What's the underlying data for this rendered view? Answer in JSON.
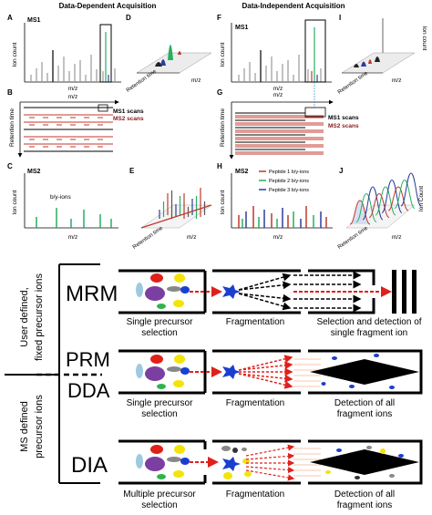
{
  "top": {
    "dda_title": "Data-Dependent Acquisition",
    "dia_title": "Data-Independent Acquisition",
    "letters": {
      "A": "A",
      "B": "B",
      "C": "C",
      "D": "D",
      "E": "E",
      "F": "F",
      "G": "G",
      "H": "H",
      "I": "I",
      "J": "J"
    },
    "ms1": "MS1",
    "ms2": "MS2",
    "ion_count": "Ion count",
    "ion_count_j": "Ion Count",
    "mz": "m/z",
    "retention_time": "Retention time",
    "ms1_scans": "MS1 scans",
    "ms2_scans": "MS2 scans",
    "by_ions": "b/y-ions",
    "legend": [
      "Peptide 1 b/y-ions",
      "Peptide 2 b/y-ions",
      "Peptide 3 b/y-ions"
    ],
    "legend_colors": [
      "#c0392b",
      "#27ae60",
      "#2c3e9e"
    ]
  },
  "bottom": {
    "user_defined_line1": "User defined,",
    "user_defined_line2": "fixed precursor ions",
    "ms_defined_line1": "MS defined",
    "ms_defined_line2": "precursor ions",
    "mrm": "MRM",
    "prm": "PRM",
    "dda": "DDA",
    "dia": "DIA",
    "single_precursor_1": "Single precursor",
    "single_precursor_2": "selection",
    "multiple_precursor_1": "Multiple precursor",
    "multiple_precursor_2": "selection",
    "fragmentation": "Fragmentation",
    "sel_det_1": "Selection and detection of",
    "sel_det_2": "single fragment ion",
    "det_all_1": "Detection of all",
    "det_all_2": "fragment ions"
  }
}
